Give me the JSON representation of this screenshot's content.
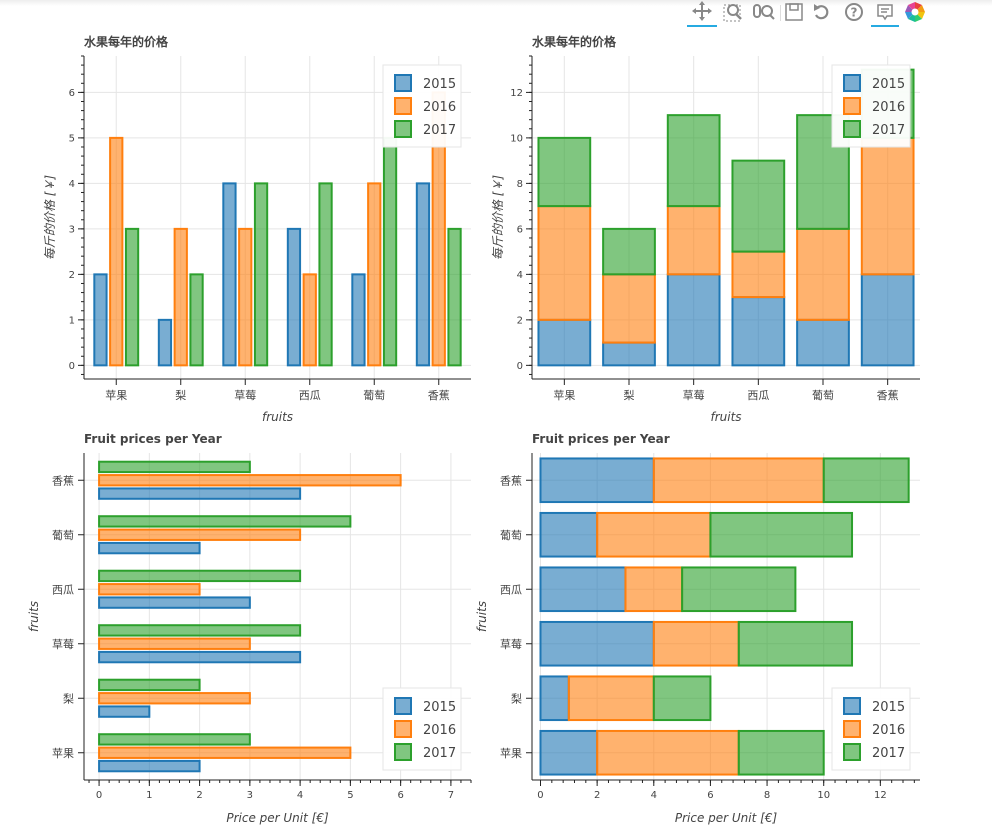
{
  "toolbar": {
    "tools": [
      {
        "name": "pan-tool",
        "icon": "pan-icon",
        "active": true
      },
      {
        "name": "box-zoom-tool",
        "icon": "box-zoom-icon",
        "active": false
      },
      {
        "name": "wheel-zoom-tool",
        "icon": "wheel-zoom-icon",
        "active": false
      },
      {
        "name": "save-tool",
        "icon": "save-icon",
        "active": false
      },
      {
        "name": "reset-tool",
        "icon": "reset-icon",
        "active": false
      },
      {
        "name": "help-tool",
        "icon": "help-icon",
        "active": false
      },
      {
        "name": "hover-tool",
        "icon": "hover-icon",
        "active": true
      },
      {
        "name": "bokeh-logo",
        "icon": "bokeh-logo-icon",
        "active": false
      }
    ],
    "active_color": "#26aae1"
  },
  "colors": {
    "2015": "#1f77b4",
    "2016": "#ff7f0e",
    "2017": "#2ca02c"
  },
  "chart_data": [
    {
      "type": "bar",
      "orientation": "vertical",
      "layout": "grouped",
      "title": "水果每年的价格",
      "categories": [
        "苹果",
        "梨",
        "草莓",
        "西瓜",
        "葡萄",
        "香蕉"
      ],
      "series": [
        {
          "name": "2015",
          "values": [
            2,
            1,
            4,
            3,
            2,
            4
          ]
        },
        {
          "name": "2016",
          "values": [
            5,
            3,
            3,
            2,
            4,
            6
          ]
        },
        {
          "name": "2017",
          "values": [
            3,
            2,
            4,
            4,
            5,
            3
          ]
        }
      ],
      "xlabel": "fruits",
      "ylabel": "每斤的价格 [￥]",
      "ylim": [
        -0.3,
        6.8
      ],
      "ticks": [
        0,
        1,
        2,
        3,
        4,
        5,
        6
      ],
      "legend": "top-right"
    },
    {
      "type": "bar",
      "orientation": "vertical",
      "layout": "stacked",
      "title": "水果每年的价格",
      "categories": [
        "苹果",
        "梨",
        "草莓",
        "西瓜",
        "葡萄",
        "香蕉"
      ],
      "series": [
        {
          "name": "2015",
          "values": [
            2,
            1,
            4,
            3,
            2,
            4
          ]
        },
        {
          "name": "2016",
          "values": [
            5,
            3,
            3,
            2,
            4,
            6
          ]
        },
        {
          "name": "2017",
          "values": [
            3,
            2,
            4,
            4,
            5,
            3
          ]
        }
      ],
      "xlabel": "fruits",
      "ylabel": "每斤的价格 [￥]",
      "ylim": [
        -0.6,
        13.6
      ],
      "ticks": [
        0,
        2,
        4,
        6,
        8,
        10,
        12
      ],
      "legend": "top-right"
    },
    {
      "type": "bar",
      "orientation": "horizontal",
      "layout": "grouped",
      "title": "Fruit prices per Year",
      "categories": [
        "苹果",
        "梨",
        "草莓",
        "西瓜",
        "葡萄",
        "香蕉"
      ],
      "series": [
        {
          "name": "2015",
          "values": [
            2,
            1,
            4,
            3,
            2,
            4
          ]
        },
        {
          "name": "2016",
          "values": [
            5,
            3,
            3,
            2,
            4,
            6
          ]
        },
        {
          "name": "2017",
          "values": [
            3,
            2,
            4,
            4,
            5,
            3
          ]
        }
      ],
      "xlabel": "Price per Unit [€]",
      "ylabel": "fruits",
      "xlim": [
        -0.3,
        7.4
      ],
      "ticks": [
        0,
        1,
        2,
        3,
        4,
        5,
        6,
        7
      ],
      "legend": "bottom-right"
    },
    {
      "type": "bar",
      "orientation": "horizontal",
      "layout": "stacked",
      "title": "Fruit prices per Year",
      "categories": [
        "苹果",
        "梨",
        "草莓",
        "西瓜",
        "葡萄",
        "香蕉"
      ],
      "series": [
        {
          "name": "2015",
          "values": [
            2,
            1,
            4,
            3,
            2,
            4
          ]
        },
        {
          "name": "2016",
          "values": [
            5,
            3,
            3,
            2,
            4,
            6
          ]
        },
        {
          "name": "2017",
          "values": [
            3,
            2,
            4,
            4,
            5,
            3
          ]
        }
      ],
      "xlabel": "Price per Unit [€]",
      "ylabel": "fruits",
      "xlim": [
        -0.3,
        13.4
      ],
      "ticks": [
        0,
        2,
        4,
        6,
        8,
        10,
        12
      ],
      "legend": "bottom-right"
    }
  ]
}
